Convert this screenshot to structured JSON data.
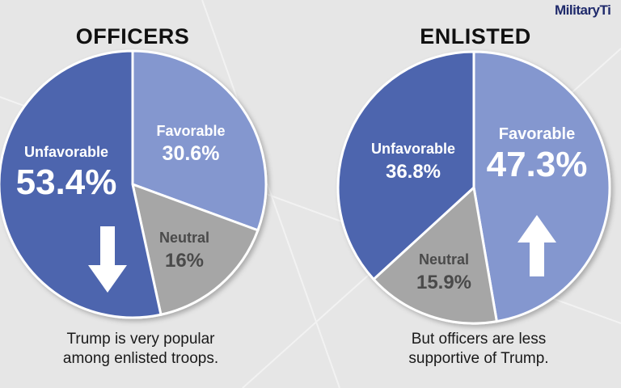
{
  "logo_text": "MilitaryTi",
  "colors": {
    "unfavorable": "#4e65ae",
    "favorable": "#8497cf",
    "neutral": "#a6a6a6",
    "background": "#e6e6e6"
  },
  "chart_data": [
    {
      "type": "pie",
      "title": "OFFICERS",
      "caption_lines": [
        "Trump is very popular",
        "among enlisted troops."
      ],
      "arrow": "down",
      "slices": [
        {
          "label": "Favorable",
          "value": 30.6,
          "display": "30.6%"
        },
        {
          "label": "Neutral",
          "value": 16,
          "display": "16%"
        },
        {
          "label": "Unfavorable",
          "value": 53.4,
          "display": "53.4%"
        }
      ]
    },
    {
      "type": "pie",
      "title": "ENLISTED",
      "caption_lines": [
        "But officers are less",
        "supportive of Trump."
      ],
      "arrow": "up",
      "slices": [
        {
          "label": "Favorable",
          "value": 47.3,
          "display": "47.3%"
        },
        {
          "label": "Neutral",
          "value": 15.9,
          "display": "15.9%"
        },
        {
          "label": "Unfavorable",
          "value": 36.8,
          "display": "36.8%"
        }
      ]
    }
  ]
}
